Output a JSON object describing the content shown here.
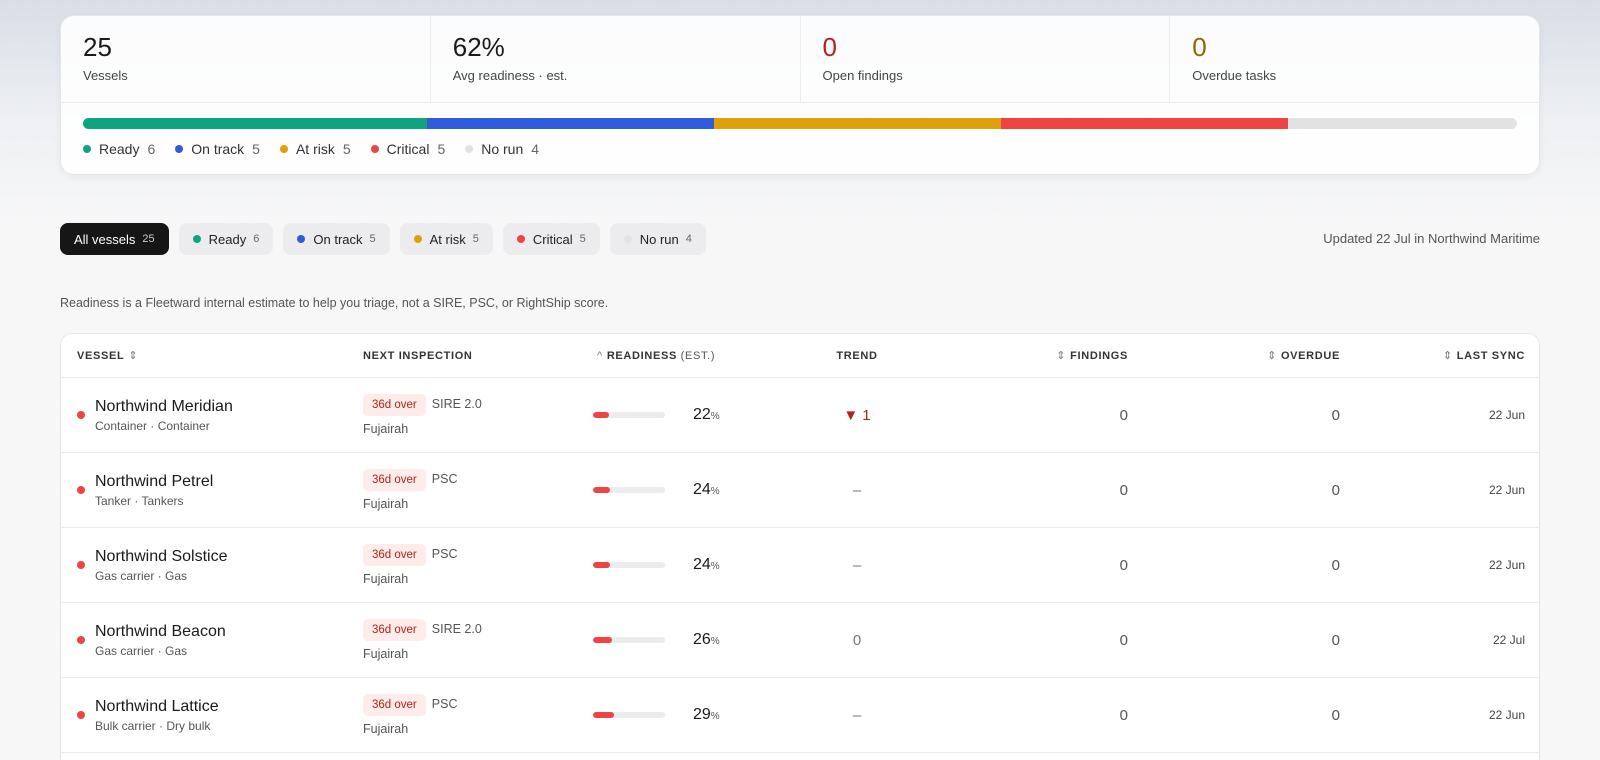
{
  "summary": {
    "stats": [
      {
        "value": "25",
        "label": "Vessels"
      },
      {
        "value": "62%",
        "label": "Avg readiness · est."
      },
      {
        "value": "0",
        "label": "Open findings"
      },
      {
        "value": "0",
        "label": "Overdue tasks"
      }
    ],
    "distribution": [
      {
        "label": "Ready",
        "count": 6,
        "color": "#10a37f"
      },
      {
        "label": "On track",
        "count": 5,
        "color": "#2f5bdc"
      },
      {
        "label": "At risk",
        "count": 5,
        "color": "#e0a00b"
      },
      {
        "label": "Critical",
        "count": 5,
        "color": "#ef4444"
      },
      {
        "label": "No run",
        "count": 4,
        "color": "#e2e2e2"
      }
    ]
  },
  "filters": {
    "all": {
      "label": "All vessels",
      "count": 25
    },
    "updated": "Updated 22 Jul in Northwind Maritime"
  },
  "note": "Readiness is a Fleetward internal estimate to help you triage, not a SIRE, PSC, or RightShip score.",
  "table": {
    "columns": [
      "VESSEL",
      "NEXT INSPECTION",
      "READINESS",
      "TREND",
      "FINDINGS",
      "OVERDUE",
      "LAST SYNC"
    ],
    "readiness_suffix": "(EST.)",
    "percent_sign": "%",
    "rows": [
      {
        "name": "Northwind Meridian",
        "type": "Container · Container",
        "badge": "36d over",
        "inspection": "SIRE 2.0",
        "port": "Fujairah",
        "readiness": 22,
        "trend": "1",
        "trend_down": true,
        "findings": 0,
        "overdue": 0,
        "last_sync": "22 Jun"
      },
      {
        "name": "Northwind Petrel",
        "type": "Tanker · Tankers",
        "badge": "36d over",
        "inspection": "PSC",
        "port": "Fujairah",
        "readiness": 24,
        "trend": "–",
        "trend_down": false,
        "findings": 0,
        "overdue": 0,
        "last_sync": "22 Jun"
      },
      {
        "name": "Northwind Solstice",
        "type": "Gas carrier · Gas",
        "badge": "36d over",
        "inspection": "PSC",
        "port": "Fujairah",
        "readiness": 24,
        "trend": "–",
        "trend_down": false,
        "findings": 0,
        "overdue": 0,
        "last_sync": "22 Jun"
      },
      {
        "name": "Northwind Beacon",
        "type": "Gas carrier · Gas",
        "badge": "36d over",
        "inspection": "SIRE 2.0",
        "port": "Fujairah",
        "readiness": 26,
        "trend": "0",
        "trend_down": false,
        "findings": 0,
        "overdue": 0,
        "last_sync": "22 Jul"
      },
      {
        "name": "Northwind Lattice",
        "type": "Bulk carrier · Dry bulk",
        "badge": "36d over",
        "inspection": "PSC",
        "port": "Fujairah",
        "readiness": 29,
        "trend": "–",
        "trend_down": false,
        "findings": 0,
        "overdue": 0,
        "last_sync": "22 Jun"
      }
    ]
  }
}
